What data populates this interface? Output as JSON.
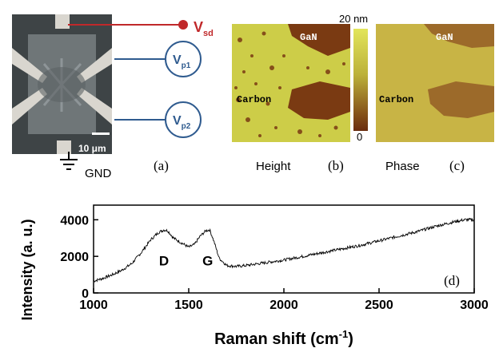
{
  "panel_a": {
    "label": "(a)",
    "vsd": "V",
    "vsd_sub": "sd",
    "vp1": "V",
    "vp1_sub": "p1",
    "vp2": "V",
    "vp2_sub": "p2",
    "scale_bar": "10 μm",
    "gnd": "GND"
  },
  "panel_b": {
    "label": "(b)",
    "caption": "Height",
    "gan": "GaN",
    "carbon": "Carbon",
    "scale_top": "20 nm",
    "scale_bottom": "0"
  },
  "panel_c": {
    "label": "(c)",
    "caption": "Phase",
    "gan": "GaN",
    "carbon": "Carbon"
  },
  "colors": {
    "red_wire": "#c0282a",
    "blue_wire": "#2f5b8f",
    "afm_light": "#cdcd48",
    "afm_dark": "#7a3a12"
  },
  "chart_data": {
    "type": "line",
    "label": "(d)",
    "xlabel": "Raman shift (cm",
    "xlabel_sup": "-1",
    "xlabel_close": ")",
    "ylabel": "Intensity (a. u.)",
    "xlim": [
      1000,
      3000
    ],
    "ylim": [
      0,
      4800
    ],
    "xticks": [
      1000,
      1500,
      2000,
      2500,
      3000
    ],
    "yticks": [
      0,
      2000,
      4000
    ],
    "annotations": [
      {
        "text": "D",
        "x": 1370,
        "y": 1500
      },
      {
        "text": "G",
        "x": 1600,
        "y": 1500
      }
    ],
    "series": [
      {
        "x": [
          1000,
          1050,
          1100,
          1150,
          1200,
          1250,
          1300,
          1340,
          1370,
          1390,
          1420,
          1460,
          1500,
          1530,
          1560,
          1590,
          1610,
          1630,
          1660,
          1700,
          1750,
          1800,
          1900,
          2000,
          2100,
          2200,
          2300,
          2400,
          2500,
          2600,
          2700,
          2800,
          2900,
          2950,
          3000
        ],
        "y": [
          650,
          800,
          1000,
          1250,
          1600,
          2200,
          2900,
          3300,
          3450,
          3400,
          3000,
          2750,
          2500,
          2650,
          3100,
          3400,
          3450,
          2900,
          1900,
          1500,
          1450,
          1500,
          1650,
          1800,
          2000,
          2200,
          2400,
          2600,
          2850,
          3100,
          3350,
          3650,
          3900,
          4000,
          4000
        ]
      }
    ]
  }
}
